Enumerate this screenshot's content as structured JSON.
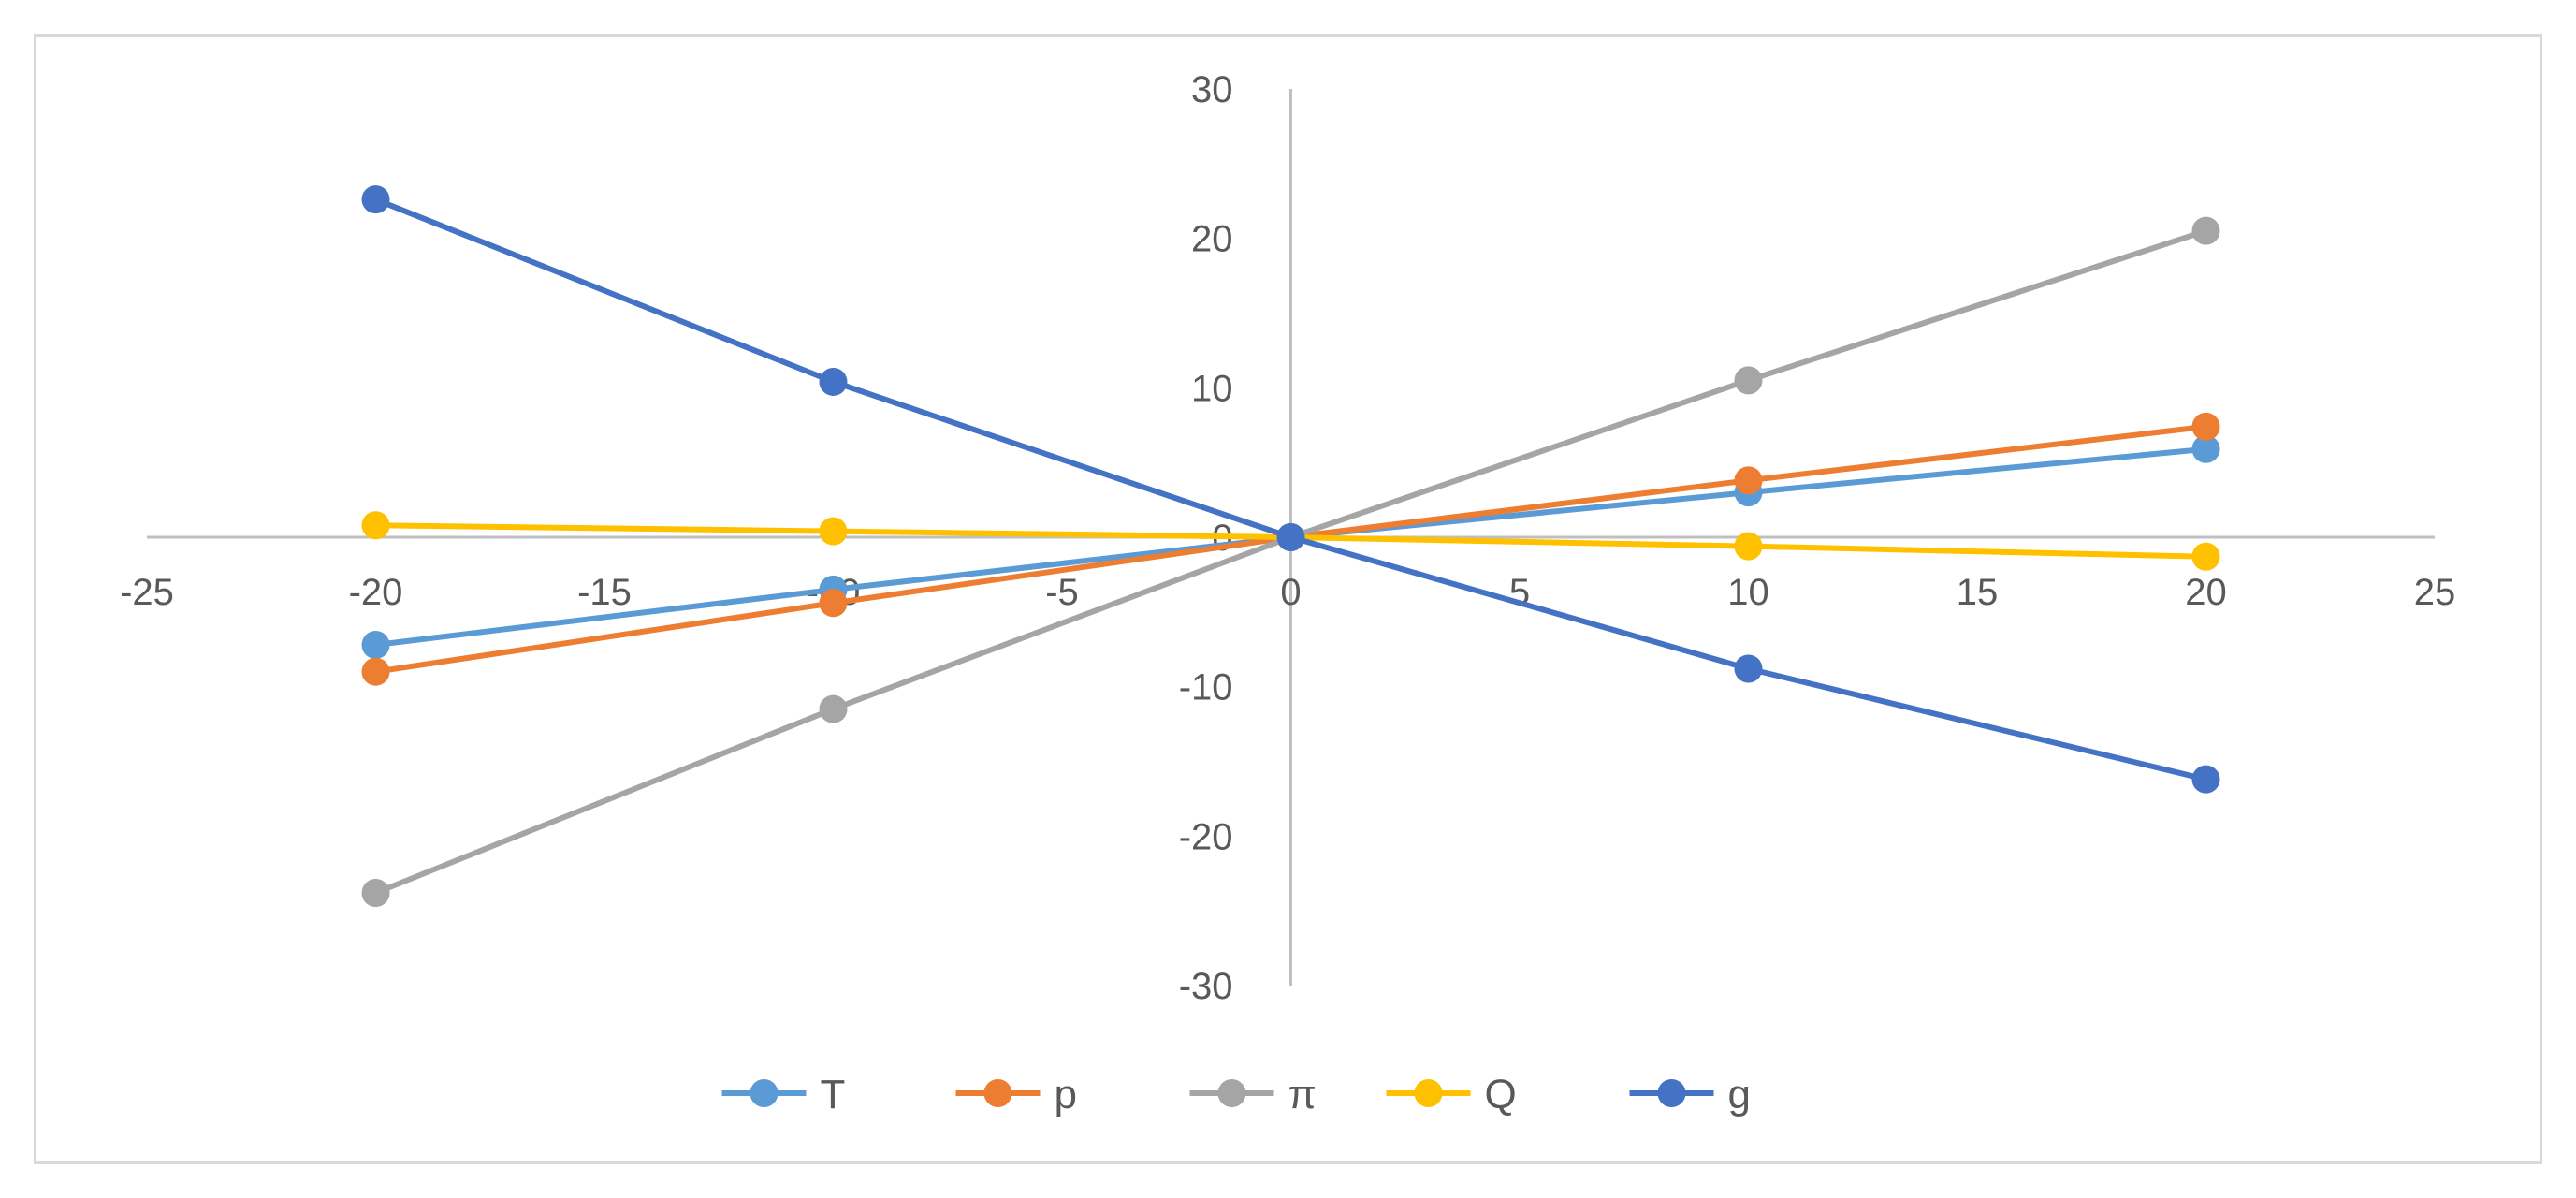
{
  "chart_data": {
    "type": "line",
    "title": "",
    "xlabel": "",
    "ylabel": "",
    "xlim": [
      -25,
      25
    ],
    "ylim": [
      -30,
      30
    ],
    "x_ticks": [
      "-25",
      "-20",
      "-15",
      "-10",
      "-5",
      "0",
      "5",
      "10",
      "15",
      "20",
      "25"
    ],
    "y_ticks": [
      "30",
      "20",
      "10",
      "0",
      "-10",
      "-20",
      "-30"
    ],
    "x": [
      -20,
      -10,
      0,
      10,
      20
    ],
    "grid": false,
    "legend_position": "bottom",
    "series": [
      {
        "name": "T",
        "color": "#5b9bd5",
        "values": [
          -7.2,
          -3.5,
          0,
          3.0,
          5.9
        ]
      },
      {
        "name": "p",
        "color": "#ed7d31",
        "values": [
          -9.0,
          -4.4,
          0,
          3.8,
          7.4
        ]
      },
      {
        "name": "π",
        "color": "#a5a5a5",
        "values": [
          -23.8,
          -11.5,
          0,
          10.5,
          20.5
        ]
      },
      {
        "name": "Q",
        "color": "#ffc000",
        "values": [
          0.8,
          0.4,
          0,
          -0.6,
          -1.3
        ]
      },
      {
        "name": "g",
        "color": "#4472c4",
        "values": [
          22.6,
          10.4,
          0,
          -8.8,
          -16.2
        ]
      }
    ]
  }
}
